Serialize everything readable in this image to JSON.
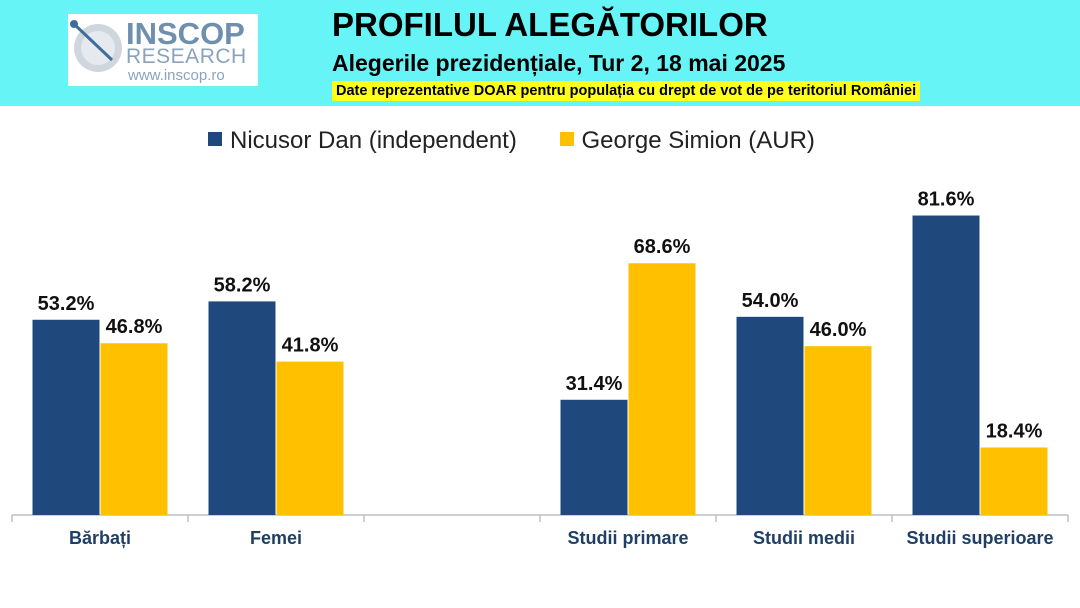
{
  "logo": {
    "name": "INSCOP",
    "sub": "RESEARCH",
    "url": "www.inscop.ro"
  },
  "header": {
    "title": "PROFILUL ALEGĂTORILOR",
    "subtitle": "Alegerile prezidențiale, Tur 2, 18 mai 2025",
    "note": "Date reprezentative DOAR pentru populația cu drept de vot de pe teritoriul României"
  },
  "colors": {
    "header_bg": "#66f4f6",
    "note_bg": "#ffff1a",
    "series_dan": "#1f497d",
    "series_simion": "#ffc000"
  },
  "chart_data": {
    "type": "bar",
    "categories": [
      "Bărbați",
      "Femei",
      "",
      "Studii primare",
      "Studii medii",
      "Studii superioare"
    ],
    "series": [
      {
        "name": "Nicusor Dan (independent)",
        "color": "#1f497d",
        "values": [
          53.2,
          58.2,
          null,
          31.4,
          54.0,
          81.6
        ],
        "labels": [
          "53.2%",
          "58.2%",
          "",
          "31.4%",
          "54.0%",
          "81.6%"
        ]
      },
      {
        "name": "George Simion (AUR)",
        "color": "#ffc000",
        "values": [
          46.8,
          41.8,
          null,
          68.6,
          46.0,
          18.4
        ],
        "labels": [
          "46.8%",
          "41.8%",
          "",
          "68.6%",
          "46.0%",
          "18.4%"
        ]
      }
    ],
    "ylim": [
      0,
      100
    ],
    "grid": false,
    "legend": "top",
    "title": "",
    "xlabel": "",
    "ylabel": ""
  }
}
